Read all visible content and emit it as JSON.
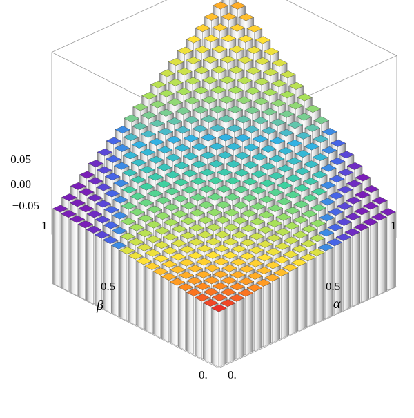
{
  "chart_data": {
    "type": "bar3d",
    "xlabel": "α",
    "ylabel": "β",
    "zlabel": "",
    "x_tick_labels": [
      "0.",
      "0.5",
      "1"
    ],
    "y_tick_labels": [
      "0.",
      "0.5",
      "1"
    ],
    "z_tick_labels": [
      "0.05",
      "0.00",
      "−0.05"
    ],
    "x_ticks": [
      0,
      0.5,
      1
    ],
    "y_ticks": [
      0,
      0.5,
      1
    ],
    "z_ticks": [
      0.05,
      0.0,
      -0.05
    ],
    "xlim": [
      0,
      1
    ],
    "ylim": [
      0,
      1
    ],
    "zlim": [
      -0.075,
      0.085
    ],
    "grid_size": 20,
    "surface_description": "value at (α, β) rises linearly from the corner (0,0) to the far corner (1,1); bars near (0,0) low (red), far corner high (orange), sides at (1,0) and (0,1) purple",
    "corner_values": {
      "alpha0_beta0": -0.07,
      "alpha1_beta0": -0.055,
      "alpha0_beta1": -0.055,
      "alpha1_beta1": 0.075
    },
    "colormap": [
      "#e81b2b",
      "#ff8a1e",
      "#ffe135",
      "#a8e15a",
      "#3fd0a0",
      "#33b2e3",
      "#4a5be6",
      "#7a1fb8"
    ],
    "bar_side_color": "#c8c8c8"
  }
}
